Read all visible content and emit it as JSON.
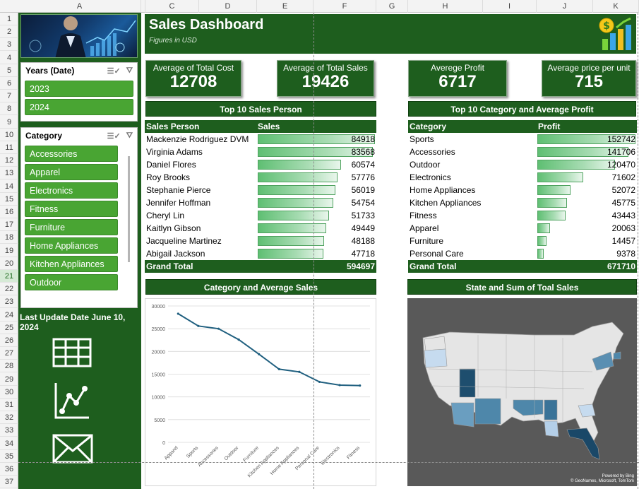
{
  "sheet": {
    "columns": [
      "A",
      "B",
      "C",
      "D",
      "E",
      "F",
      "G",
      "H",
      "I",
      "J",
      "K"
    ],
    "rows": [
      "1",
      "2",
      "3",
      "4",
      "5",
      "6",
      "7",
      "8",
      "9",
      "10",
      "11",
      "12",
      "13",
      "14",
      "15",
      "16",
      "17",
      "18",
      "19",
      "20",
      "21",
      "22",
      "23",
      "24",
      "25",
      "26",
      "27",
      "28",
      "29",
      "30",
      "31",
      "32",
      "33",
      "34",
      "35",
      "36",
      "37"
    ],
    "selected_row": "21"
  },
  "header": {
    "title": "Sales Dashboard",
    "subtitle": "Figures in USD"
  },
  "years_slicer": {
    "title": "Years (Date)",
    "items": [
      "2023",
      "2024"
    ]
  },
  "category_slicer": {
    "title": "Category",
    "items": [
      "Accessories",
      "Apparel",
      "Electronics",
      "Fitness",
      "Furniture",
      "Home Appliances",
      "Kitchen Appliances",
      "Outdoor"
    ]
  },
  "last_update": "Last Update Date June 10, 2024",
  "kpis": [
    {
      "label": "Average of Total Cost",
      "value": "12708"
    },
    {
      "label": "Average of Total Sales",
      "value": "19426"
    },
    {
      "label": "Averege Profit",
      "value": "6717"
    },
    {
      "label": "Average price per unit",
      "value": "715"
    }
  ],
  "sales_person_table": {
    "title": "Top 10 Sales Person",
    "col1": "Sales Person",
    "col2": "Sales",
    "rows": [
      {
        "name": "Mackenzie Rodriguez DVM",
        "value": 84918
      },
      {
        "name": "Virginia Adams",
        "value": 83568
      },
      {
        "name": "Daniel Flores",
        "value": 60574
      },
      {
        "name": "Roy Brooks",
        "value": 57776
      },
      {
        "name": "Stephanie Pierce",
        "value": 56019
      },
      {
        "name": "Jennifer Hoffman",
        "value": 54754
      },
      {
        "name": "Cheryl Lin",
        "value": 51733
      },
      {
        "name": "Kaitlyn Gibson",
        "value": 49449
      },
      {
        "name": "Jacqueline Martinez",
        "value": 48188
      },
      {
        "name": "Abigail Jackson",
        "value": 47718
      }
    ],
    "total_label": "Grand Total",
    "total_value": "594697"
  },
  "category_profit_table": {
    "title": "Top 10 Category and Average Profit",
    "col1": "Category",
    "col2": "Profit",
    "rows": [
      {
        "name": "Sports",
        "value": 152742
      },
      {
        "name": "Accessories",
        "value": 141706
      },
      {
        "name": "Outdoor",
        "value": 120470
      },
      {
        "name": "Electronics",
        "value": 71602
      },
      {
        "name": "Home Appliances",
        "value": 52072
      },
      {
        "name": "Kitchen Appliances",
        "value": 45775
      },
      {
        "name": "Fitness",
        "value": 43443
      },
      {
        "name": "Apparel",
        "value": 20063
      },
      {
        "name": "Furniture",
        "value": 14457
      },
      {
        "name": "Personal Care",
        "value": 9378
      }
    ],
    "total_label": "Grand Total",
    "total_value": "671710"
  },
  "line_chart_title": "Category and Average Sales",
  "map_title": "State and Sum of Toal Sales",
  "map_credit": [
    "Powered by Bing",
    "© GeoNames, Microsoft, TomTom"
  ],
  "chart_data": {
    "type": "line",
    "categories": [
      "Apparel",
      "Sports",
      "Accessories",
      "Outdoor",
      "Furniture",
      "Kitchen Appliances",
      "Home Appliances",
      "Personal Care",
      "Electronics",
      "Fitness"
    ],
    "values": [
      28300,
      25600,
      25000,
      22600,
      19400,
      16100,
      15500,
      13300,
      12600,
      12500
    ],
    "ylim": [
      0,
      30000
    ],
    "yticks": [
      0,
      5000,
      10000,
      15000,
      20000,
      25000,
      30000
    ],
    "grid": true,
    "line_color": "#1f5f7f"
  },
  "colors": {
    "dark_green": "#1e5e1e",
    "slicer_green": "#49a533"
  },
  "icons": [
    "table-icon",
    "line-chart-icon",
    "mail-icon",
    "money-chart-icon"
  ]
}
